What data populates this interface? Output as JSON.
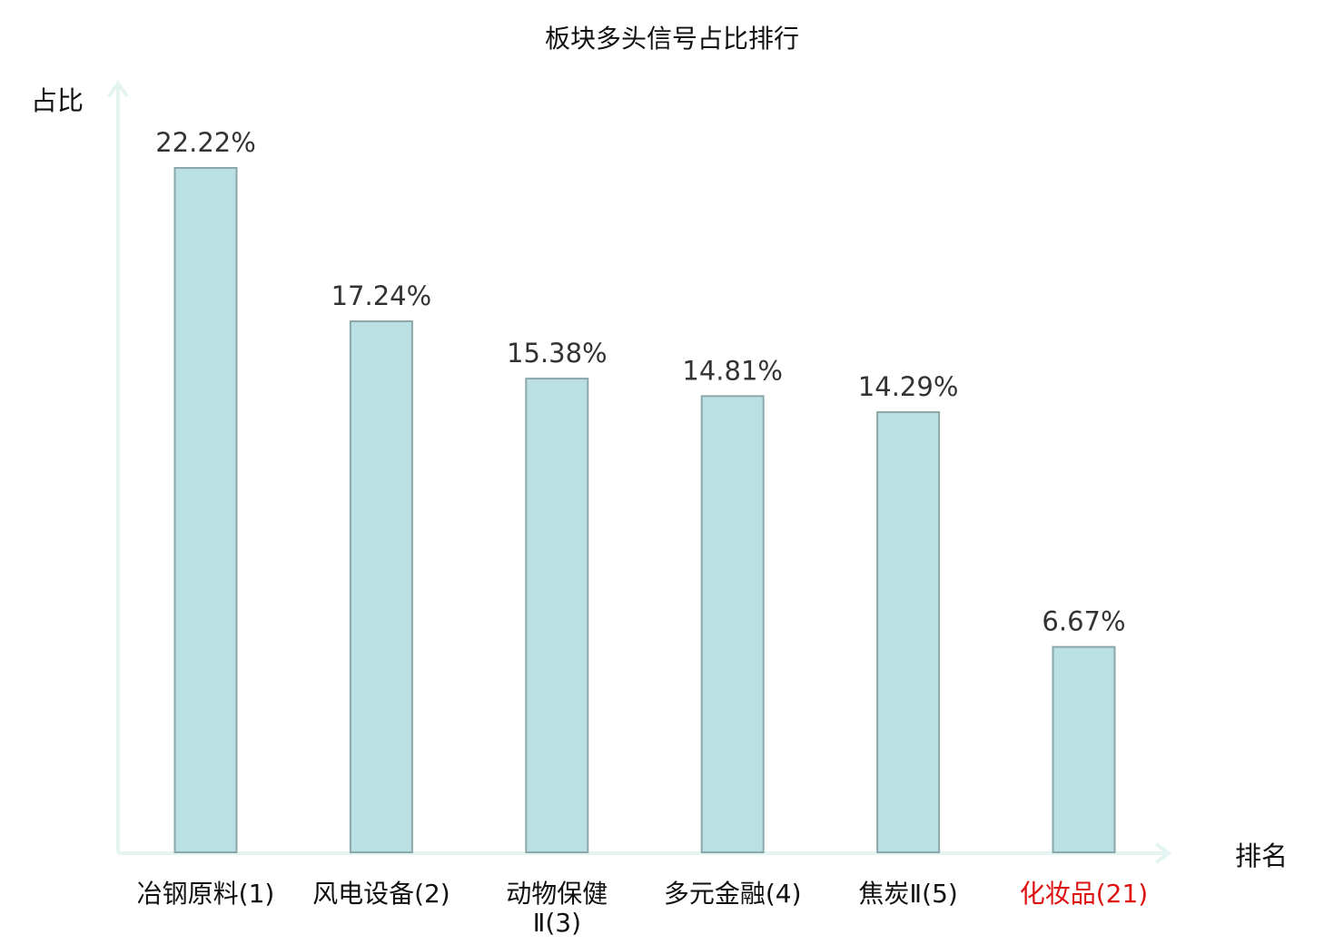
{
  "chart_data": {
    "type": "bar",
    "title": "板块多头信号占比排行",
    "ylabel": "占比",
    "xlabel": "排名",
    "categories": [
      {
        "name": "冶钢原料",
        "rank": "(1)",
        "line2": ""
      },
      {
        "name": "风电设备",
        "rank": "(2)",
        "line2": ""
      },
      {
        "name": "动物保健",
        "rank": "",
        "line2": "Ⅱ(3)"
      },
      {
        "name": "多元金融",
        "rank": "(4)",
        "line2": ""
      },
      {
        "name": "焦炭Ⅱ",
        "rank": "(5)",
        "line2": ""
      },
      {
        "name": "化妆品",
        "rank": "(21)",
        "line2": ""
      }
    ],
    "values": [
      22.22,
      17.24,
      15.38,
      14.81,
      14.29,
      6.67
    ],
    "value_labels": [
      "22.22%",
      "17.24%",
      "15.38%",
      "14.81%",
      "14.29%",
      "6.67%"
    ],
    "ylim": [
      0,
      22.22
    ],
    "grid": false,
    "highlight_index": 5,
    "colors": {
      "bar_fill": "#bbe0e3",
      "bar_stroke": "#8aa8aa",
      "axis": "#e3f4f1",
      "highlight_text": "#dd1111"
    }
  }
}
